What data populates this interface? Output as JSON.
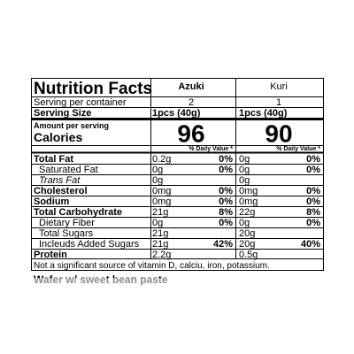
{
  "header": {
    "title": "Nutrition Facts",
    "columns": [
      "Azuki",
      "Kuri"
    ]
  },
  "servings": {
    "label": "Serving per container",
    "values": [
      "2",
      "1"
    ]
  },
  "serving_size": {
    "label": "Serving Size",
    "values": [
      "1pcs (40g)",
      "1pcs (40g)"
    ]
  },
  "amount_label": "Amount per serving",
  "calories": {
    "label": "Calories",
    "values": [
      "96",
      "90"
    ]
  },
  "dv_heading": "% Daily Value *",
  "nutrients": [
    {
      "label": "Total Fat",
      "bold": true,
      "values": [
        [
          "0.2g",
          "0%"
        ],
        [
          "0g",
          "0%"
        ]
      ]
    },
    {
      "label": "Saturated Fat",
      "indent": true,
      "values": [
        [
          "0g",
          "0%"
        ],
        [
          "0g",
          "0%"
        ]
      ]
    },
    {
      "label": "Trans Fat",
      "indent": true,
      "italic": true,
      "values": [
        [
          "0g"
        ],
        [
          "0g"
        ]
      ]
    },
    {
      "label": "Cholesterol",
      "bold": true,
      "values": [
        [
          "0mg",
          "0%"
        ],
        [
          "0mg",
          "0%"
        ]
      ]
    },
    {
      "label": "Sodium",
      "bold": true,
      "values": [
        [
          "0mg",
          "0%"
        ],
        [
          "0mg",
          "0%"
        ]
      ]
    },
    {
      "label": "Total Carbohydrate",
      "bold": true,
      "values": [
        [
          "21g",
          "8%"
        ],
        [
          "22g",
          "8%"
        ]
      ]
    },
    {
      "label": "Dietary Fiber",
      "indent": true,
      "values": [
        [
          "0g",
          "0%"
        ],
        [
          "0g",
          "0%"
        ]
      ]
    },
    {
      "label": "Total Sugars",
      "indent": true,
      "values": [
        [
          "21g"
        ],
        [
          "20g"
        ]
      ]
    },
    {
      "label": "Incleuds Added Sugars",
      "indent": true,
      "values": [
        [
          "21g",
          "42%"
        ],
        [
          "20g",
          "40%"
        ]
      ]
    },
    {
      "label": "Protein",
      "bold": true,
      "values": [
        [
          "2.2g"
        ],
        [
          "0.5g"
        ]
      ]
    }
  ],
  "footnote": "Not a significant source of vitamin D, calciu, iron, potassium.",
  "product": "Wafer w/ sweet bean paste"
}
